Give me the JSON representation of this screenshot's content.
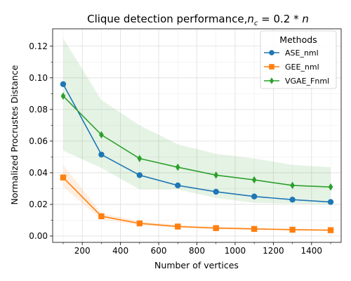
{
  "chart_data": {
    "type": "line",
    "title_main": "Clique detection performance,",
    "title_var": "n",
    "title_sub": "c",
    "title_rest": " = 0.2 * ",
    "title_end": "n",
    "xlabel": "Number of vertices",
    "ylabel": "Normalized Procrustes Distance",
    "xlim": [
      45,
      1555
    ],
    "ylim": [
      -0.004,
      0.131
    ],
    "xticks": [
      200,
      400,
      600,
      800,
      1000,
      1200,
      1400
    ],
    "yticks": [
      0.0,
      0.02,
      0.04,
      0.06,
      0.08,
      0.1,
      0.12
    ],
    "grid": true,
    "legend_title": "Methods",
    "legend_position": "top-right",
    "x": [
      100,
      300,
      500,
      700,
      900,
      1100,
      1300,
      1500
    ],
    "series": [
      {
        "name": "ASE_nml",
        "color": "#1f77b4",
        "marker": "circle",
        "values": [
          0.096,
          0.0515,
          0.0385,
          0.032,
          0.028,
          0.025,
          0.023,
          0.0215
        ],
        "band": null
      },
      {
        "name": "GEE_nml",
        "color": "#ff7f0e",
        "marker": "square",
        "values": [
          0.037,
          0.0125,
          0.008,
          0.006,
          0.005,
          0.0045,
          0.004,
          0.0037
        ],
        "band": {
          "lower": [
            0.031,
            0.0105,
            0.0068,
            0.0052,
            0.0044,
            0.004,
            0.0036,
            0.0033
          ],
          "upper": [
            0.045,
            0.0145,
            0.0093,
            0.007,
            0.0058,
            0.0052,
            0.0046,
            0.0042
          ]
        }
      },
      {
        "name": "VGAE_Fnml",
        "color": "#2ca02c",
        "marker": "diamond",
        "values": [
          0.0885,
          0.064,
          0.049,
          0.0435,
          0.0385,
          0.0355,
          0.032,
          0.031
        ],
        "band": {
          "lower": [
            0.054,
            0.043,
            0.0295,
            0.0295,
            0.024,
            0.021,
            0.0205,
            0.02
          ],
          "upper": [
            0.125,
            0.086,
            0.07,
            0.058,
            0.052,
            0.049,
            0.045,
            0.0435
          ]
        }
      }
    ]
  }
}
